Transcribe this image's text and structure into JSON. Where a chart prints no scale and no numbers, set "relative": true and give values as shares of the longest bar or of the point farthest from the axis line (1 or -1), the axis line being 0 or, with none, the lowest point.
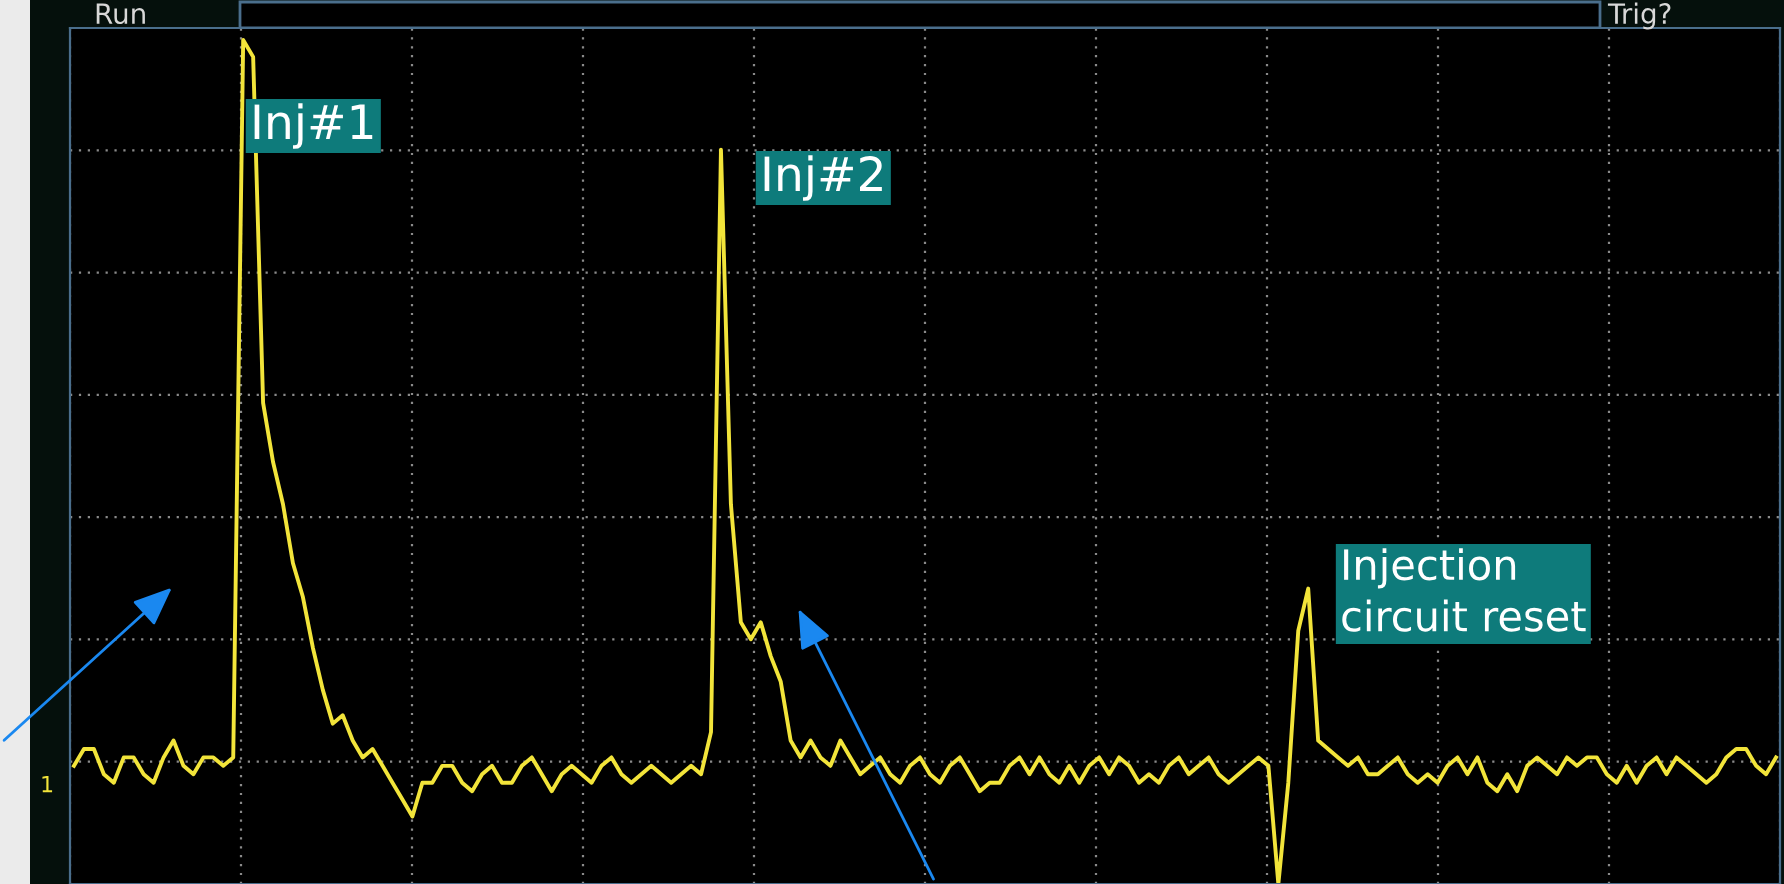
{
  "chart_data": {
    "type": "line",
    "relative": true,
    "grid": true,
    "color": "#f2e43a",
    "annotations": [
      "Run",
      "Trig?",
      "Inj#1",
      "Inj#2",
      "Injection circuit reset",
      "1"
    ],
    "categories": [
      null,
      null,
      null,
      null,
      null,
      null,
      null,
      null,
      null,
      null,
      null,
      null,
      null,
      null,
      null,
      null,
      null,
      null,
      null,
      null,
      null,
      null,
      null,
      null,
      null,
      null,
      null,
      null,
      null,
      null,
      null,
      null,
      null,
      null,
      null,
      null,
      null,
      null,
      null,
      null,
      null,
      null,
      null,
      null,
      null,
      null,
      null,
      null,
      null,
      null,
      null,
      null,
      null,
      null,
      null,
      null,
      null,
      null,
      null,
      null,
      null,
      null,
      null,
      null,
      null,
      null,
      null,
      null,
      null,
      null,
      null,
      null,
      null,
      null,
      null,
      null,
      null,
      null,
      null,
      null,
      null,
      null,
      null,
      null,
      null,
      null,
      null,
      null,
      null,
      null,
      null,
      null,
      null,
      null,
      null,
      null,
      null,
      null,
      null,
      null,
      null,
      null,
      null,
      null,
      null,
      null,
      null,
      null,
      null,
      null,
      null,
      null,
      null,
      null,
      null,
      null,
      null,
      null,
      null,
      null,
      null,
      null,
      null,
      null,
      null,
      null,
      null,
      null,
      null,
      null,
      null,
      null,
      null,
      null,
      null,
      null,
      null,
      null,
      null,
      null,
      null,
      null,
      null,
      null,
      null,
      null,
      null,
      null,
      null,
      null,
      null,
      null,
      null,
      null,
      null,
      null,
      null,
      null,
      null,
      null,
      null,
      null,
      null,
      null,
      null,
      null,
      null,
      null,
      null,
      null,
      null,
      null
    ],
    "values": [
      0.14,
      0.16,
      0.16,
      0.13,
      0.12,
      0.15,
      0.15,
      0.13,
      0.12,
      0.15,
      0.17,
      0.14,
      0.13,
      0.15,
      0.15,
      0.14,
      0.15,
      1.0,
      0.98,
      0.57,
      0.5,
      0.45,
      0.38,
      0.34,
      0.28,
      0.23,
      0.19,
      0.2,
      0.17,
      0.15,
      0.16,
      0.14,
      0.12,
      0.1,
      0.08,
      0.12,
      0.12,
      0.14,
      0.14,
      0.12,
      0.11,
      0.13,
      0.14,
      0.12,
      0.12,
      0.14,
      0.15,
      0.13,
      0.11,
      0.13,
      0.14,
      0.13,
      0.12,
      0.14,
      0.15,
      0.13,
      0.12,
      0.13,
      0.14,
      0.13,
      0.12,
      0.13,
      0.14,
      0.13,
      0.18,
      0.87,
      0.45,
      0.31,
      0.29,
      0.31,
      0.27,
      0.24,
      0.17,
      0.15,
      0.17,
      0.15,
      0.14,
      0.17,
      0.15,
      0.13,
      0.14,
      0.15,
      0.13,
      0.12,
      0.14,
      0.15,
      0.13,
      0.12,
      0.14,
      0.15,
      0.13,
      0.11,
      0.12,
      0.12,
      0.14,
      0.15,
      0.13,
      0.15,
      0.13,
      0.12,
      0.14,
      0.12,
      0.14,
      0.15,
      0.13,
      0.15,
      0.14,
      0.12,
      0.13,
      0.12,
      0.14,
      0.15,
      0.13,
      0.14,
      0.15,
      0.13,
      0.12,
      0.13,
      0.14,
      0.15,
      0.14,
      0,
      0.12,
      0.3,
      0.35,
      0.17,
      0.16,
      0.15,
      0.14,
      0.15,
      0.13,
      0.13,
      0.14,
      0.15,
      0.13,
      0.12,
      0.13,
      0.12,
      0.14,
      0.15,
      0.13,
      0.15,
      0.12,
      0.11,
      0.13,
      0.11,
      0.14,
      0.15,
      0.14,
      0.13,
      0.15,
      0.14,
      0.15,
      0.15,
      0.13,
      0.12,
      0.14,
      0.12,
      0.14,
      0.15,
      0.13,
      0.15,
      0.14,
      0.13,
      0.12,
      0.13,
      0.15,
      0.16,
      0.16,
      0.14,
      0.13,
      0.15
    ]
  }
}
